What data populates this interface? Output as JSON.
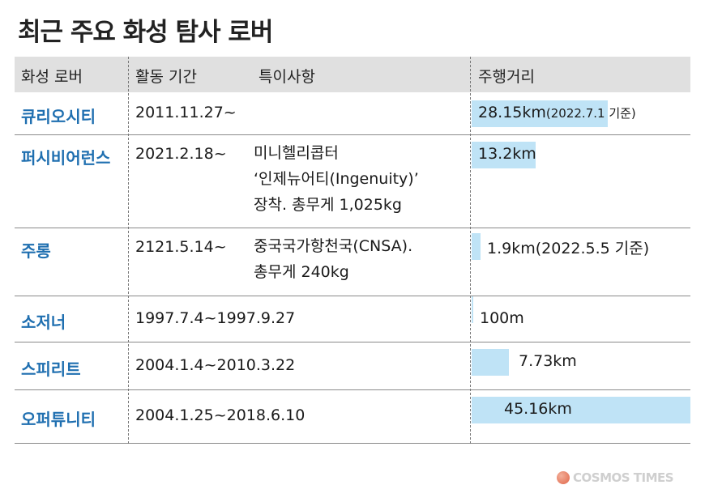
{
  "title": "최근 주요 화성 탐사 로버",
  "headers": {
    "rover": "화성 로버",
    "period": "활동 기간",
    "note": "특이사항",
    "distance": "주행거리"
  },
  "chart_data": {
    "type": "table",
    "columns": [
      "화성 로버",
      "활동 기간",
      "특이사항",
      "주행거리"
    ],
    "bar_max_km": 45.16,
    "rows": [
      {
        "rover": "큐리오시티",
        "period": "2011.11.27~",
        "note": "",
        "distance": "28.15km",
        "distance_note": "(2022.7.1 기준)",
        "distance_km": 28.15
      },
      {
        "rover": "퍼시비어런스",
        "period": "2021.2.18~",
        "note": "미니헬리콥터\n‘인제뉴어티(Ingenuity)’\n장착. 총무게 1,025kg",
        "distance": "13.2km",
        "distance_note": "",
        "distance_km": 13.2
      },
      {
        "rover": "주롱",
        "period": "2121.5.14~",
        "note": "중국국가항천국(CNSA).\n총무게 240kg",
        "distance": "1.9km",
        "distance_note": "(2022.5.5 기준)",
        "distance_km": 1.9
      },
      {
        "rover": "소저너",
        "period": "1997.7.4~1997.9.27",
        "note": "",
        "distance": "100m",
        "distance_note": "",
        "distance_km": 0.1
      },
      {
        "rover": "스피리트",
        "period": "2004.1.4~2010.3.22",
        "note": "",
        "distance": "7.73km",
        "distance_note": "",
        "distance_km": 7.73
      },
      {
        "rover": "오퍼튜니티",
        "period": "2004.1.25~2018.6.10",
        "note": "",
        "distance": "45.16km",
        "distance_note": "",
        "distance_km": 45.16
      }
    ]
  },
  "logo": {
    "text": "COSMOS TIMES",
    "accent_color": "#e06548"
  },
  "colors": {
    "rover_name": "#1f6fb0",
    "bar": "#bfe3f6",
    "header_bg": "#e0e0e0"
  }
}
